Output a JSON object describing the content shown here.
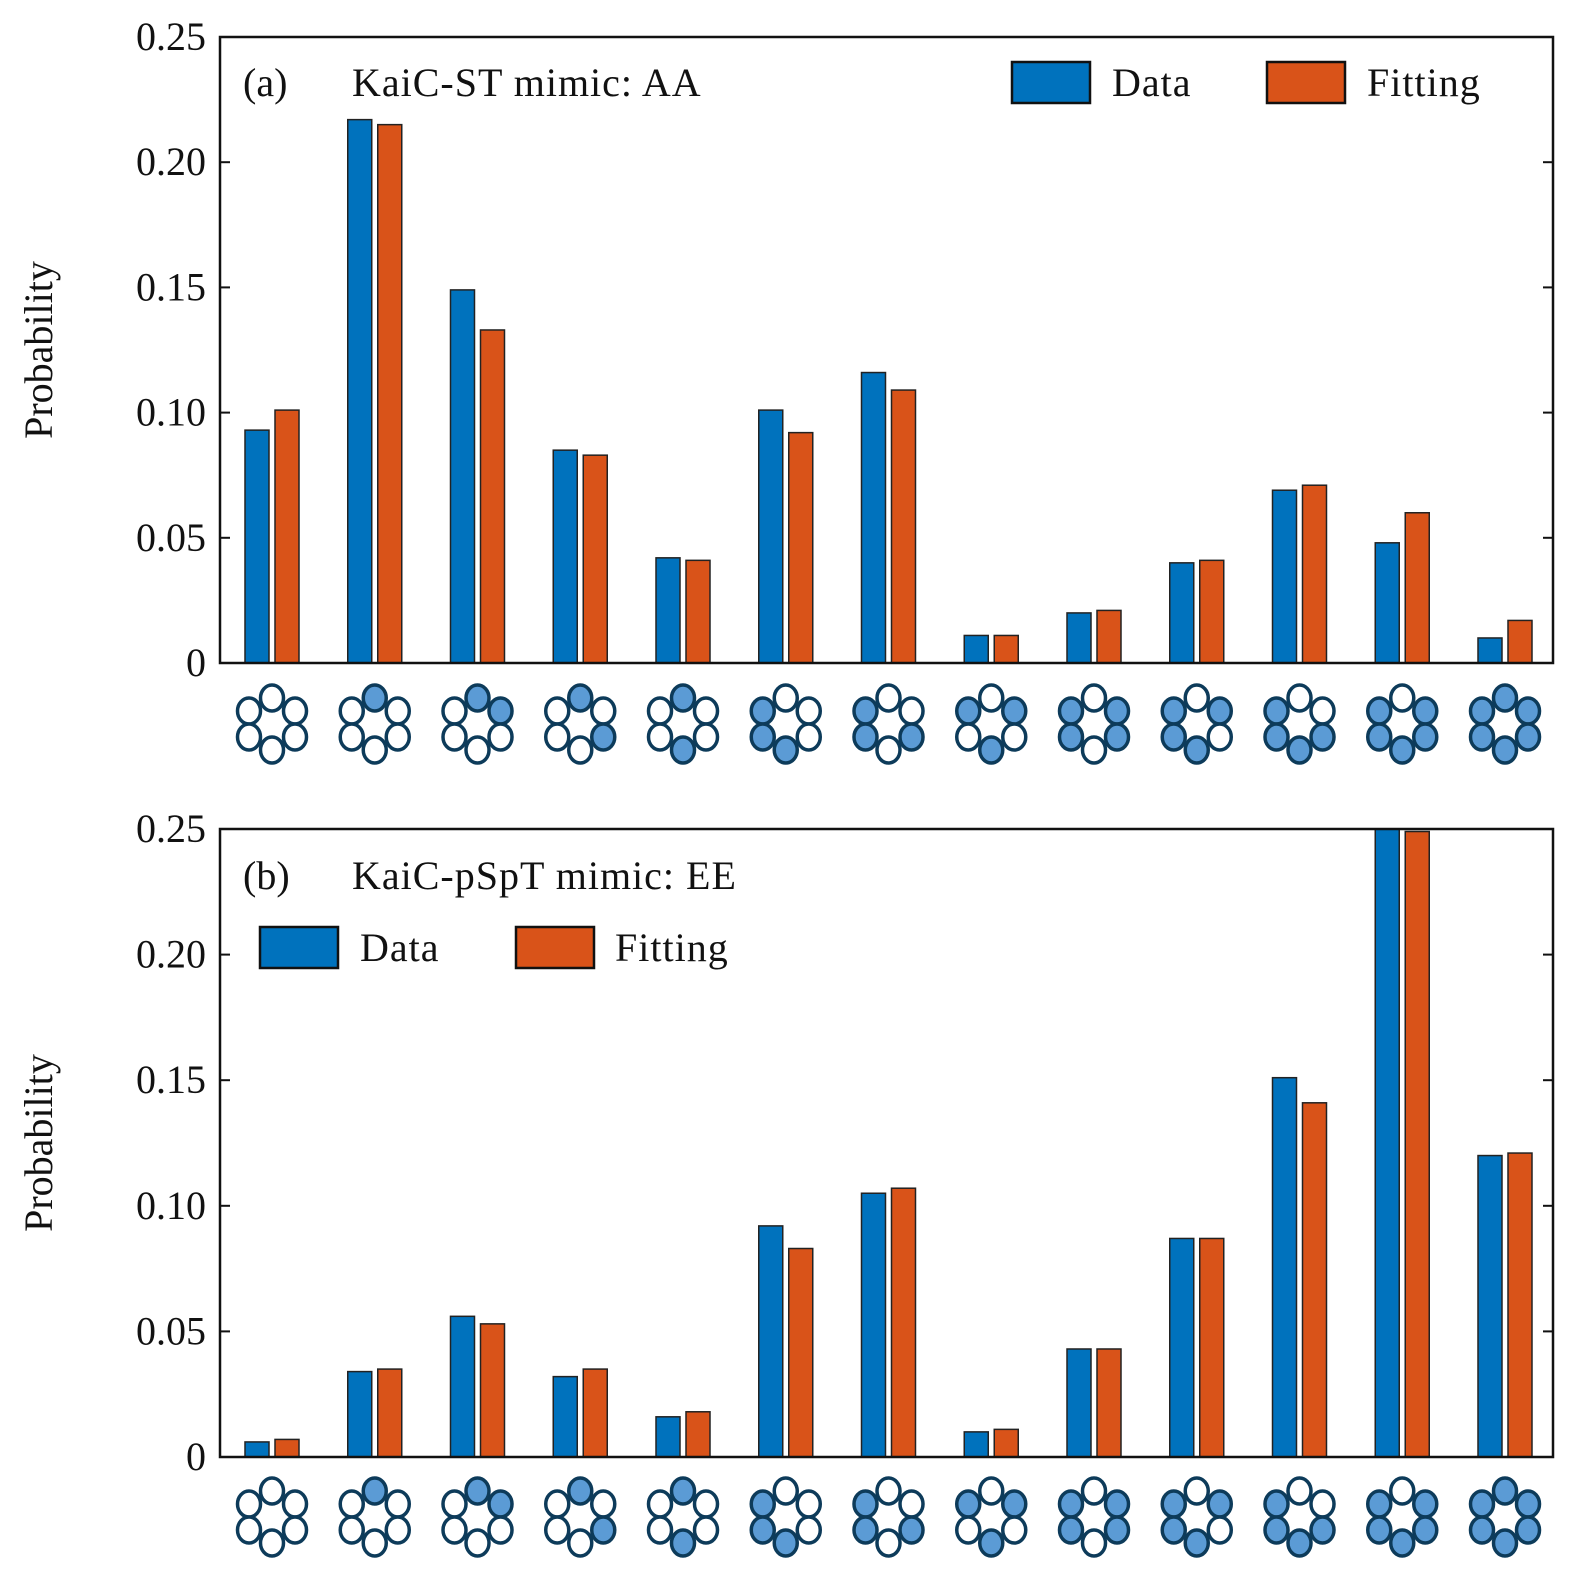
{
  "colors": {
    "data": "#0072bd",
    "fitting": "#d95319",
    "glyph_fill": "#5b9bd5",
    "glyph_stroke": "#0d3b5a",
    "glyph_empty": "#ffffff"
  },
  "glyph_order": "top, upper-left, upper-right, lower-left, lower-right, bottom",
  "chart_data": [
    {
      "type": "bar",
      "title": "(a)   KaiC-ST mimic: AA",
      "panel_label": "(a)",
      "subtitle": "KaiC-ST mimic: AA",
      "ylabel": "Probability",
      "xlabel": "",
      "ylim": [
        0,
        0.25
      ],
      "yticks": [
        0,
        0.05,
        0.1,
        0.15,
        0.2,
        0.25
      ],
      "ytick_labels": [
        "0",
        "0.05",
        "0.10",
        "0.15",
        "0.20",
        "0.25"
      ],
      "legend": {
        "placement": "top-right",
        "entries": [
          "Data",
          "Fitting"
        ]
      },
      "categories": [
        "000000",
        "100000",
        "101000",
        "100010",
        "100001",
        "010101",
        "010110",
        "011001",
        "011110",
        "011101",
        "010111",
        "011111",
        "111111"
      ],
      "series": [
        {
          "name": "Data",
          "values": [
            0.093,
            0.217,
            0.149,
            0.085,
            0.042,
            0.101,
            0.116,
            0.011,
            0.02,
            0.04,
            0.069,
            0.048,
            0.01
          ]
        },
        {
          "name": "Fitting",
          "values": [
            0.101,
            0.215,
            0.133,
            0.083,
            0.041,
            0.092,
            0.109,
            0.011,
            0.021,
            0.041,
            0.071,
            0.06,
            0.017
          ]
        }
      ]
    },
    {
      "type": "bar",
      "title": "(b)   KaiC-pSpT mimic: EE",
      "panel_label": "(b)",
      "subtitle": "KaiC-pSpT mimic: EE",
      "ylabel": "Probability",
      "xlabel": "",
      "ylim": [
        0,
        0.25
      ],
      "yticks": [
        0,
        0.05,
        0.1,
        0.15,
        0.2,
        0.25
      ],
      "ytick_labels": [
        "0",
        "0.05",
        "0.10",
        "0.15",
        "0.20",
        "0.25"
      ],
      "legend": {
        "placement": "top-left",
        "entries": [
          "Data",
          "Fitting"
        ]
      },
      "categories": [
        "000000",
        "100000",
        "101000",
        "100010",
        "100001",
        "010101",
        "010110",
        "011001",
        "011110",
        "011101",
        "010111",
        "011111",
        "111111"
      ],
      "series": [
        {
          "name": "Data",
          "values": [
            0.006,
            0.034,
            0.056,
            0.032,
            0.016,
            0.092,
            0.105,
            0.01,
            0.043,
            0.087,
            0.151,
            0.26,
            0.12
          ]
        },
        {
          "name": "Fitting",
          "values": [
            0.007,
            0.035,
            0.053,
            0.035,
            0.018,
            0.083,
            0.107,
            0.011,
            0.043,
            0.087,
            0.141,
            0.249,
            0.121
          ]
        }
      ]
    }
  ]
}
